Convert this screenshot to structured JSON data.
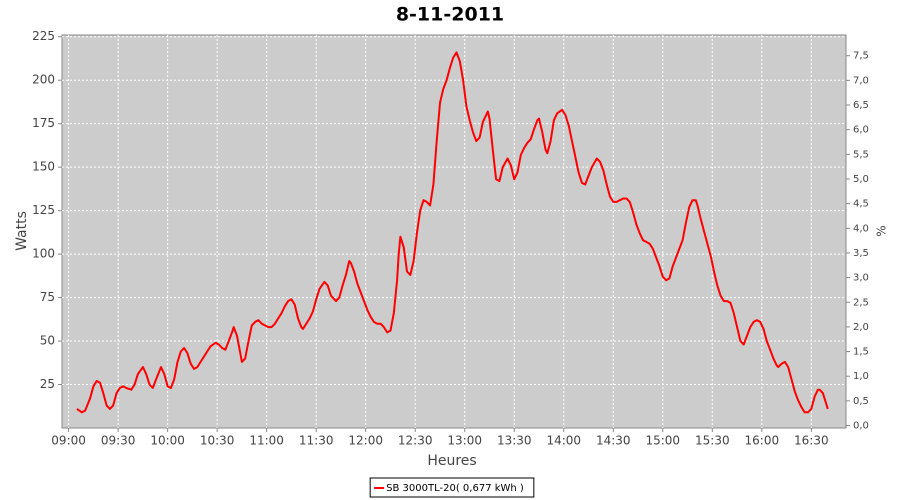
{
  "chart_data": {
    "type": "line",
    "title": "8-11-2011",
    "x_label": "Heures",
    "y_label": "Watts",
    "y2_label": "%",
    "x": [
      "09:05",
      "09:08",
      "09:10",
      "09:13",
      "09:15",
      "09:17",
      "09:19",
      "09:21",
      "09:23",
      "09:25",
      "09:27",
      "09:29",
      "09:31",
      "09:33",
      "09:35",
      "09:38",
      "09:40",
      "09:42",
      "09:45",
      "09:47",
      "09:49",
      "09:51",
      "09:53",
      "09:56",
      "09:58",
      "10:00",
      "10:02",
      "10:04",
      "10:06",
      "10:08",
      "10:10",
      "10:12",
      "10:14",
      "10:16",
      "10:18",
      "10:20",
      "10:22",
      "10:24",
      "10:26",
      "10:29",
      "10:31",
      "10:33",
      "10:35",
      "10:37",
      "10:39",
      "10:40",
      "10:42",
      "10:44",
      "10:45",
      "10:47",
      "10:49",
      "10:51",
      "10:53",
      "10:55",
      "10:57",
      "10:59",
      "11:01",
      "11:03",
      "11:05",
      "11:07",
      "11:09",
      "11:11",
      "11:13",
      "11:15",
      "11:17",
      "11:19",
      "11:21",
      "11:22",
      "11:24",
      "11:26",
      "11:28",
      "11:30",
      "11:32",
      "11:35",
      "11:37",
      "11:39",
      "11:42",
      "11:44",
      "11:46",
      "11:48",
      "11:50",
      "11:51",
      "11:53",
      "11:55",
      "11:57",
      "11:59",
      "12:01",
      "12:03",
      "12:05",
      "12:07",
      "12:09",
      "12:11",
      "12:13",
      "12:15",
      "12:17",
      "12:19",
      "12:20",
      "12:21",
      "12:23",
      "12:25",
      "12:27",
      "12:29",
      "12:31",
      "12:33",
      "12:35",
      "12:37",
      "12:39",
      "12:41",
      "12:43",
      "12:45",
      "12:47",
      "12:49",
      "12:51",
      "12:53",
      "12:55",
      "12:57",
      "12:59",
      "13:01",
      "13:03",
      "13:05",
      "13:07",
      "13:09",
      "13:11",
      "13:14",
      "13:15",
      "13:17",
      "13:19",
      "13:21",
      "13:23",
      "13:26",
      "13:28",
      "13:30",
      "13:32",
      "13:34",
      "13:36",
      "13:38",
      "13:40",
      "13:42",
      "13:44",
      "13:45",
      "13:47",
      "13:49",
      "13:50",
      "13:52",
      "13:54",
      "13:56",
      "13:59",
      "14:01",
      "14:03",
      "14:05",
      "14:07",
      "14:09",
      "14:11",
      "14:13",
      "14:15",
      "14:17",
      "14:20",
      "14:22",
      "14:24",
      "14:26",
      "14:28",
      "14:30",
      "14:32",
      "14:34",
      "14:36",
      "14:38",
      "14:40",
      "14:42",
      "14:44",
      "14:46",
      "14:48",
      "14:50",
      "14:52",
      "14:54",
      "14:56",
      "14:58",
      "15:00",
      "15:02",
      "15:04",
      "15:06",
      "15:08",
      "15:10",
      "15:12",
      "15:14",
      "15:16",
      "15:18",
      "15:20",
      "15:21",
      "15:23",
      "15:25",
      "15:27",
      "15:29",
      "15:31",
      "15:33",
      "15:35",
      "15:37",
      "15:39",
      "15:41",
      "15:43",
      "15:45",
      "15:47",
      "15:49",
      "15:51",
      "15:53",
      "15:55",
      "15:57",
      "15:59",
      "16:01",
      "16:03",
      "16:05",
      "16:07",
      "16:09",
      "16:10",
      "16:12",
      "16:14",
      "16:16",
      "16:18",
      "16:20",
      "16:22",
      "16:24",
      "16:26",
      "16:28",
      "16:30",
      "16:32",
      "16:34",
      "16:35",
      "16:37",
      "16:40"
    ],
    "series": [
      {
        "name": "SB 3000TL-20( 0,677 kWh )",
        "color": "#ff0000",
        "values": [
          11,
          9,
          10,
          17,
          24,
          27,
          26,
          20,
          13,
          11,
          13,
          20,
          23,
          24,
          23,
          22,
          25,
          31,
          35,
          31,
          25,
          23,
          28,
          35,
          31,
          24,
          23,
          28,
          38,
          44,
          46,
          43,
          37,
          34,
          35,
          38,
          41,
          44,
          47,
          49,
          48,
          46,
          45,
          50,
          55,
          58,
          53,
          43,
          38,
          40,
          50,
          59,
          61,
          62,
          60,
          59,
          58,
          58,
          60,
          63,
          66,
          70,
          73,
          74,
          71,
          63,
          58,
          57,
          60,
          63,
          67,
          74,
          80,
          84,
          82,
          76,
          73,
          75,
          82,
          88,
          96,
          95,
          90,
          83,
          78,
          73,
          68,
          64,
          61,
          60,
          60,
          58,
          55,
          56,
          66,
          85,
          100,
          110,
          104,
          90,
          88,
          96,
          112,
          125,
          131,
          130,
          128,
          140,
          165,
          187,
          195,
          200,
          207,
          213,
          216,
          211,
          200,
          185,
          177,
          170,
          165,
          167,
          176,
          182,
          178,
          160,
          143,
          142,
          150,
          155,
          151,
          143,
          147,
          157,
          161,
          164,
          166,
          172,
          177,
          178,
          170,
          160,
          158,
          165,
          177,
          181,
          183,
          180,
          174,
          165,
          156,
          147,
          141,
          140,
          145,
          150,
          155,
          153,
          148,
          140,
          133,
          130,
          130,
          131,
          132,
          132,
          130,
          124,
          117,
          112,
          108,
          107,
          106,
          103,
          98,
          93,
          87,
          85,
          86,
          93,
          98,
          103,
          108,
          118,
          127,
          131,
          131,
          128,
          120,
          113,
          106,
          99,
          90,
          82,
          76,
          73,
          73,
          72,
          66,
          58,
          50,
          48,
          53,
          58,
          61,
          62,
          61,
          57,
          50,
          45,
          40,
          36,
          35,
          37,
          38,
          35,
          28,
          21,
          16,
          12,
          9,
          9,
          11,
          18,
          22,
          22,
          20,
          11
        ]
      }
    ],
    "xlim": [
      "08:56",
      "16:51"
    ],
    "xticks": [
      "09:00",
      "09:30",
      "10:00",
      "10:30",
      "11:00",
      "11:30",
      "12:00",
      "12:30",
      "13:00",
      "13:30",
      "14:00",
      "14:30",
      "15:00",
      "15:30",
      "16:00",
      "16:30"
    ],
    "ylim": [
      0,
      226
    ],
    "yticks": [
      25,
      50,
      75,
      100,
      125,
      150,
      175,
      200,
      225
    ],
    "y2lim": [
      -0.05,
      7.92
    ],
    "y2ticks": [
      {
        "value": 0,
        "label": "0,0"
      },
      {
        "value": 0.5,
        "label": "0,5"
      },
      {
        "value": 1,
        "label": "1,0"
      },
      {
        "value": 1.5,
        "label": "1,5"
      },
      {
        "value": 2,
        "label": "2,0"
      },
      {
        "value": 2.5,
        "label": "2,5"
      },
      {
        "value": 3,
        "label": "3,0"
      },
      {
        "value": 3.5,
        "label": "3,5"
      },
      {
        "value": 4,
        "label": "4,0"
      },
      {
        "value": 4.5,
        "label": "4,5"
      },
      {
        "value": 5,
        "label": "5,0"
      },
      {
        "value": 5.5,
        "label": "5,5"
      },
      {
        "value": 6,
        "label": "6,0"
      },
      {
        "value": 6.5,
        "label": "6,5"
      },
      {
        "value": 7,
        "label": "7,0"
      },
      {
        "value": 7.5,
        "label": "7,5"
      }
    ],
    "grid": true,
    "legend": "bottom"
  }
}
